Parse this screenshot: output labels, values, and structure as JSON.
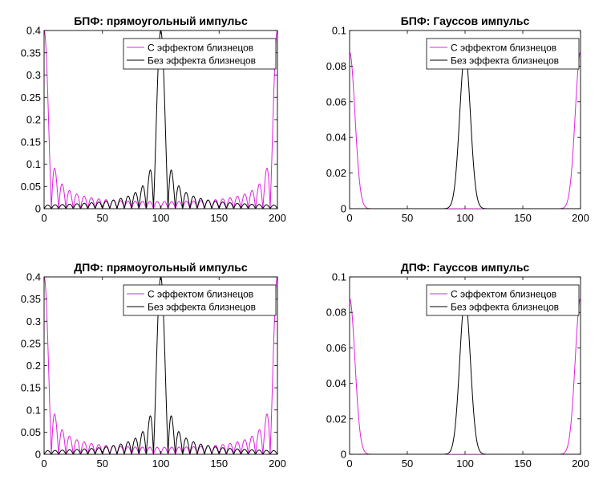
{
  "chart_data": [
    {
      "type": "line",
      "panel": "top-left",
      "model": "rect",
      "title": "БПФ: прямоугольный импульс",
      "xlim": [
        0,
        200
      ],
      "ylim": [
        0,
        0.4
      ],
      "xticks": [
        0,
        50,
        100,
        150,
        200
      ],
      "yticks": [
        0,
        0.05,
        0.1,
        0.15,
        0.2,
        0.25,
        0.3,
        0.35,
        0.4
      ],
      "legend_position": "top-right",
      "series": [
        {
          "name": "С эффектом близнецов",
          "color": "#e020e0",
          "peak_at": [
            0,
            200
          ],
          "peak": 0.4
        },
        {
          "name": "Без эффекта близнецов",
          "color": "#000000",
          "peak_at": [
            100
          ],
          "peak": 0.4
        }
      ]
    },
    {
      "type": "line",
      "panel": "top-right",
      "model": "gauss",
      "title": "БПФ: Гауссов импульс",
      "xlim": [
        0,
        200
      ],
      "ylim": [
        0,
        0.1
      ],
      "xticks": [
        0,
        50,
        100,
        150,
        200
      ],
      "yticks": [
        0,
        0.02,
        0.04,
        0.06,
        0.08,
        0.1
      ],
      "legend_position": "top-right",
      "series": [
        {
          "name": "С эффектом близнецов",
          "color": "#e020e0",
          "peak_at": [
            0,
            200
          ],
          "peak": 0.088
        },
        {
          "name": "Без эффекта близнецов",
          "color": "#000000",
          "peak_at": [
            100
          ],
          "peak": 0.088
        }
      ]
    },
    {
      "type": "line",
      "panel": "bottom-left",
      "model": "rect",
      "title": "ДПФ: прямоугольный импульс",
      "xlim": [
        0,
        200
      ],
      "ylim": [
        0,
        0.4
      ],
      "xticks": [
        0,
        50,
        100,
        150,
        200
      ],
      "yticks": [
        0,
        0.05,
        0.1,
        0.15,
        0.2,
        0.25,
        0.3,
        0.35,
        0.4
      ],
      "legend_position": "top-right",
      "series": [
        {
          "name": "С эффектом близнецов",
          "color": "#e020e0",
          "peak_at": [
            0,
            200
          ],
          "peak": 0.4
        },
        {
          "name": "Без эффекта близнецов",
          "color": "#000000",
          "peak_at": [
            100
          ],
          "peak": 0.4
        }
      ]
    },
    {
      "type": "line",
      "panel": "bottom-right",
      "model": "gauss",
      "title": "ДПФ: Гауссов импульс",
      "xlim": [
        0,
        200
      ],
      "ylim": [
        0,
        0.1
      ],
      "xticks": [
        0,
        50,
        100,
        150,
        200
      ],
      "yticks": [
        0,
        0.02,
        0.04,
        0.06,
        0.08,
        0.1
      ],
      "legend_position": "top-right",
      "series": [
        {
          "name": "С эффектом близнецов",
          "color": "#e020e0",
          "peak_at": [
            0,
            200
          ],
          "peak": 0.088
        },
        {
          "name": "Без эффекта близнецов",
          "color": "#000000",
          "peak_at": [
            100
          ],
          "peak": 0.088
        }
      ]
    }
  ]
}
